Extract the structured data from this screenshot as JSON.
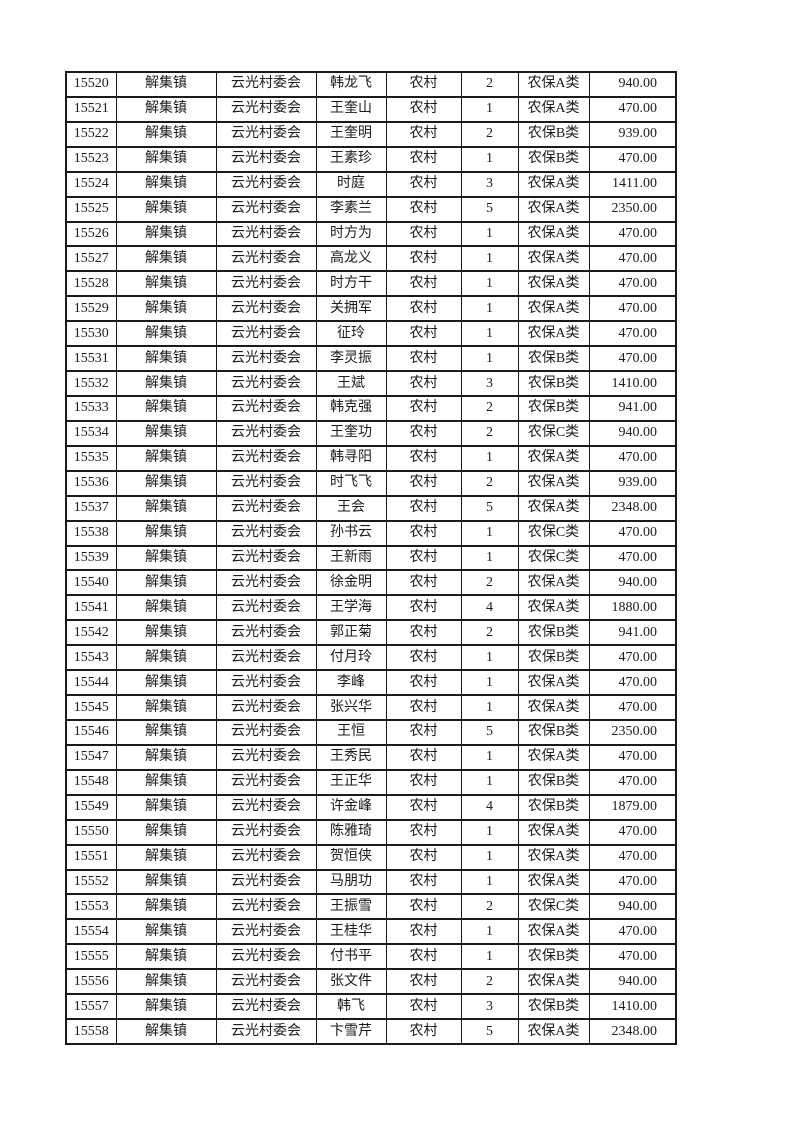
{
  "table": {
    "rows": [
      [
        "15520",
        "解集镇",
        "云光村委会",
        "韩龙飞",
        "农村",
        "2",
        "农保A类",
        "940.00"
      ],
      [
        "15521",
        "解集镇",
        "云光村委会",
        "王奎山",
        "农村",
        "1",
        "农保A类",
        "470.00"
      ],
      [
        "15522",
        "解集镇",
        "云光村委会",
        "王奎明",
        "农村",
        "2",
        "农保B类",
        "939.00"
      ],
      [
        "15523",
        "解集镇",
        "云光村委会",
        "王素珍",
        "农村",
        "1",
        "农保B类",
        "470.00"
      ],
      [
        "15524",
        "解集镇",
        "云光村委会",
        "时庭",
        "农村",
        "3",
        "农保A类",
        "1411.00"
      ],
      [
        "15525",
        "解集镇",
        "云光村委会",
        "李素兰",
        "农村",
        "5",
        "农保A类",
        "2350.00"
      ],
      [
        "15526",
        "解集镇",
        "云光村委会",
        "时方为",
        "农村",
        "1",
        "农保A类",
        "470.00"
      ],
      [
        "15527",
        "解集镇",
        "云光村委会",
        "高龙义",
        "农村",
        "1",
        "农保A类",
        "470.00"
      ],
      [
        "15528",
        "解集镇",
        "云光村委会",
        "时方干",
        "农村",
        "1",
        "农保A类",
        "470.00"
      ],
      [
        "15529",
        "解集镇",
        "云光村委会",
        "关拥军",
        "农村",
        "1",
        "农保A类",
        "470.00"
      ],
      [
        "15530",
        "解集镇",
        "云光村委会",
        "征玲",
        "农村",
        "1",
        "农保A类",
        "470.00"
      ],
      [
        "15531",
        "解集镇",
        "云光村委会",
        "李灵振",
        "农村",
        "1",
        "农保B类",
        "470.00"
      ],
      [
        "15532",
        "解集镇",
        "云光村委会",
        "王斌",
        "农村",
        "3",
        "农保B类",
        "1410.00"
      ],
      [
        "15533",
        "解集镇",
        "云光村委会",
        "韩克强",
        "农村",
        "2",
        "农保B类",
        "941.00"
      ],
      [
        "15534",
        "解集镇",
        "云光村委会",
        "王奎功",
        "农村",
        "2",
        "农保C类",
        "940.00"
      ],
      [
        "15535",
        "解集镇",
        "云光村委会",
        "韩寻阳",
        "农村",
        "1",
        "农保A类",
        "470.00"
      ],
      [
        "15536",
        "解集镇",
        "云光村委会",
        "时飞飞",
        "农村",
        "2",
        "农保A类",
        "939.00"
      ],
      [
        "15537",
        "解集镇",
        "云光村委会",
        "王会",
        "农村",
        "5",
        "农保A类",
        "2348.00"
      ],
      [
        "15538",
        "解集镇",
        "云光村委会",
        "孙书云",
        "农村",
        "1",
        "农保C类",
        "470.00"
      ],
      [
        "15539",
        "解集镇",
        "云光村委会",
        "王新雨",
        "农村",
        "1",
        "农保C类",
        "470.00"
      ],
      [
        "15540",
        "解集镇",
        "云光村委会",
        "徐金明",
        "农村",
        "2",
        "农保A类",
        "940.00"
      ],
      [
        "15541",
        "解集镇",
        "云光村委会",
        "王学海",
        "农村",
        "4",
        "农保A类",
        "1880.00"
      ],
      [
        "15542",
        "解集镇",
        "云光村委会",
        "郭正菊",
        "农村",
        "2",
        "农保B类",
        "941.00"
      ],
      [
        "15543",
        "解集镇",
        "云光村委会",
        "付月玲",
        "农村",
        "1",
        "农保B类",
        "470.00"
      ],
      [
        "15544",
        "解集镇",
        "云光村委会",
        "李峰",
        "农村",
        "1",
        "农保A类",
        "470.00"
      ],
      [
        "15545",
        "解集镇",
        "云光村委会",
        "张兴华",
        "农村",
        "1",
        "农保A类",
        "470.00"
      ],
      [
        "15546",
        "解集镇",
        "云光村委会",
        "王恒",
        "农村",
        "5",
        "农保B类",
        "2350.00"
      ],
      [
        "15547",
        "解集镇",
        "云光村委会",
        "王秀民",
        "农村",
        "1",
        "农保A类",
        "470.00"
      ],
      [
        "15548",
        "解集镇",
        "云光村委会",
        "王正华",
        "农村",
        "1",
        "农保B类",
        "470.00"
      ],
      [
        "15549",
        "解集镇",
        "云光村委会",
        "许金峰",
        "农村",
        "4",
        "农保B类",
        "1879.00"
      ],
      [
        "15550",
        "解集镇",
        "云光村委会",
        "陈雅琦",
        "农村",
        "1",
        "农保A类",
        "470.00"
      ],
      [
        "15551",
        "解集镇",
        "云光村委会",
        "贺恒侠",
        "农村",
        "1",
        "农保A类",
        "470.00"
      ],
      [
        "15552",
        "解集镇",
        "云光村委会",
        "马朋功",
        "农村",
        "1",
        "农保A类",
        "470.00"
      ],
      [
        "15553",
        "解集镇",
        "云光村委会",
        "王振雪",
        "农村",
        "2",
        "农保C类",
        "940.00"
      ],
      [
        "15554",
        "解集镇",
        "云光村委会",
        "王桂华",
        "农村",
        "1",
        "农保A类",
        "470.00"
      ],
      [
        "15555",
        "解集镇",
        "云光村委会",
        "付书平",
        "农村",
        "1",
        "农保B类",
        "470.00"
      ],
      [
        "15556",
        "解集镇",
        "云光村委会",
        "张文件",
        "农村",
        "2",
        "农保A类",
        "940.00"
      ],
      [
        "15557",
        "解集镇",
        "云光村委会",
        "韩飞",
        "农村",
        "3",
        "农保B类",
        "1410.00"
      ],
      [
        "15558",
        "解集镇",
        "云光村委会",
        "卞雪芹",
        "农村",
        "5",
        "农保A类",
        "2348.00"
      ]
    ]
  }
}
